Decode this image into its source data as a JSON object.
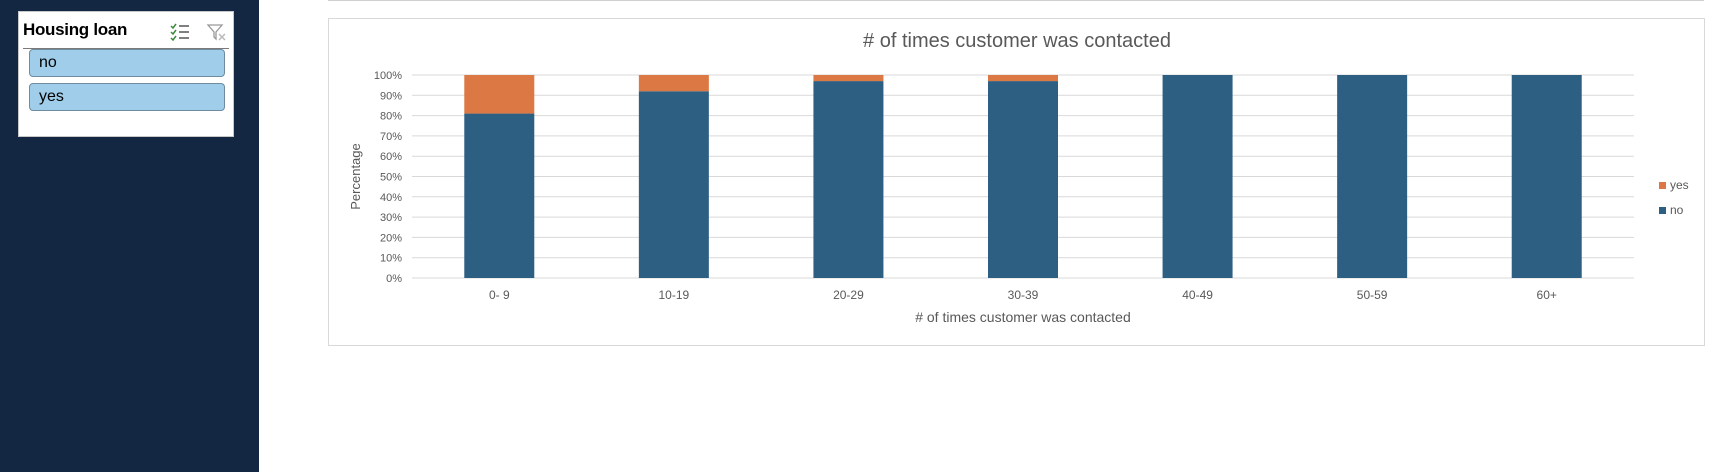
{
  "slicer": {
    "title": "Housing loan",
    "items": [
      {
        "label": "no"
      },
      {
        "label": "yes"
      }
    ],
    "icons": [
      "multi-select-icon",
      "clear-filter-icon"
    ]
  },
  "colors": {
    "sidebar": "#132742",
    "no": "#2c5f82",
    "yes": "#dc7843",
    "slicer_button": "#9fcdea",
    "gridline": "#d9d9d9"
  },
  "chart_data": {
    "type": "bar",
    "stacked": true,
    "title": "# of times customer was contacted",
    "xlabel": "# of times customer was contacted",
    "ylabel": "Percentage",
    "categories": [
      "0- 9",
      "10-19",
      "20-29",
      "30-39",
      "40-49",
      "50-59",
      "60+"
    ],
    "yticks": [
      "0%",
      "10%",
      "20%",
      "30%",
      "40%",
      "50%",
      "60%",
      "70%",
      "80%",
      "90%",
      "100%"
    ],
    "ylim": [
      0,
      100
    ],
    "grid": true,
    "legend_position": "right",
    "series": [
      {
        "name": "no",
        "values": [
          81,
          92,
          97,
          97,
          100,
          100,
          100
        ]
      },
      {
        "name": "yes",
        "values": [
          19,
          8,
          3,
          3,
          0,
          0,
          0
        ]
      }
    ],
    "legend": [
      "yes",
      "no"
    ]
  }
}
